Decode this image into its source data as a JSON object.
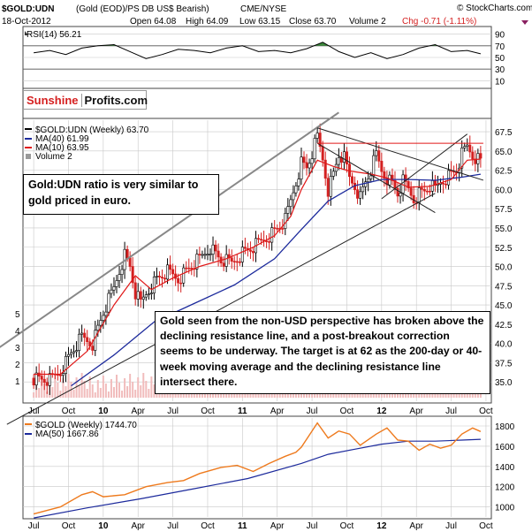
{
  "header": {
    "symbol": "$GOLD:UDN",
    "description": "(Gold (EOD)/PS DB US$ Bearish)",
    "exchange": "CME/NYSE",
    "source": "© StockCharts.com",
    "date": "18-Oct-2012",
    "open": "Open 64.08",
    "high": "High 64.09",
    "low": "Low 63.15",
    "close": "Close 63.70",
    "volume": "Volume 2",
    "chg": "Chg -0.71 (-1.11%)"
  },
  "logo": {
    "part1": "Sunshine",
    "part2": "Profits.com"
  },
  "annotations": {
    "top_note": "Gold:UDN ratio is very similar to gold priced in euro.",
    "main_note": "Gold seen from the non-USD perspective has broken above the declining resistance line, and a post-breakout correction seems to be underway. The target is at 62 as the 200-day or 40-week moving average and the declining resistance line intersect there."
  },
  "colors": {
    "price_up": "#000000",
    "price_down": "#d42020",
    "ma40": "#1c2a9c",
    "ma10": "#e01818",
    "volume": "#9a9a9a",
    "gold_line": "#ee7a1d",
    "gold_ma50": "#1c2a9c",
    "rsi_fill": "#3c8a3c",
    "grid": "#c8c8c8"
  },
  "chart_data": [
    {
      "type": "line",
      "panel": "rsi",
      "legend": "RSI(14) 56.21",
      "current": 56.21,
      "y_ticks": [
        10,
        30,
        50,
        70,
        90
      ],
      "ylim": [
        0,
        100
      ],
      "levels": [
        30,
        70
      ],
      "x": [
        0,
        6,
        12,
        18,
        24,
        30,
        36,
        42,
        48,
        54,
        60,
        66,
        72,
        78,
        84,
        90,
        96,
        102,
        108,
        114,
        120,
        126,
        132,
        138,
        144,
        150,
        156,
        162,
        167
      ],
      "values": [
        58,
        62,
        55,
        66,
        70,
        72,
        60,
        48,
        55,
        64,
        62,
        58,
        66,
        70,
        60,
        62,
        58,
        65,
        76,
        60,
        50,
        58,
        48,
        55,
        66,
        72,
        60,
        62,
        56.21
      ]
    },
    {
      "type": "candlestick",
      "panel": "price",
      "title": "$GOLD:UDN (Weekly) 63.70",
      "legend": [
        "MA(40) 61.99",
        "MA(10) 63.95",
        "Volume 2"
      ],
      "y_ticks": [
        35.0,
        37.5,
        40.0,
        42.5,
        45.0,
        47.5,
        50.0,
        52.5,
        55.0,
        57.5,
        60.0,
        62.5,
        65.0,
        67.5
      ],
      "ylim": [
        32.5,
        69.0
      ],
      "volume_ticks": [
        1,
        2,
        3,
        4,
        5
      ],
      "x_ticks": [
        "Jul",
        "Oct",
        "10",
        "Apr",
        "Jul",
        "Oct",
        "11",
        "Apr",
        "Jul",
        "Oct",
        "12",
        "Apr",
        "Jul",
        "Oct"
      ],
      "x_tick_weeks": [
        0,
        13,
        26,
        39,
        52,
        65,
        78,
        91,
        104,
        117,
        130,
        143,
        156,
        169
      ],
      "close_points": [
        [
          0,
          35.5
        ],
        [
          6,
          35.2
        ],
        [
          10,
          36.4
        ],
        [
          14,
          38.8
        ],
        [
          18,
          40.8
        ],
        [
          22,
          40.0
        ],
        [
          26,
          44.0
        ],
        [
          30,
          47.2
        ],
        [
          32,
          49.5
        ],
        [
          34,
          51.5
        ],
        [
          36,
          50.0
        ],
        [
          38,
          46.5
        ],
        [
          40,
          45.2
        ],
        [
          42,
          46.5
        ],
        [
          46,
          48.4
        ],
        [
          50,
          49.3
        ],
        [
          54,
          48.4
        ],
        [
          58,
          49.8
        ],
        [
          62,
          51.0
        ],
        [
          66,
          52.5
        ],
        [
          70,
          50.8
        ],
        [
          74,
          50.5
        ],
        [
          78,
          51.8
        ],
        [
          82,
          52.5
        ],
        [
          86,
          53.5
        ],
        [
          90,
          54.6
        ],
        [
          94,
          56.0
        ],
        [
          96,
          58.5
        ],
        [
          98,
          61.0
        ],
        [
          100,
          63.5
        ],
        [
          102,
          62.8
        ],
        [
          104,
          64.7
        ],
        [
          106,
          66.8
        ],
        [
          108,
          64.0
        ],
        [
          110,
          60.0
        ],
        [
          112,
          62.0
        ],
        [
          114,
          64.5
        ],
        [
          116,
          64.0
        ],
        [
          118,
          61.5
        ],
        [
          120,
          60.5
        ],
        [
          122,
          59.0
        ],
        [
          124,
          61.0
        ],
        [
          126,
          62.5
        ],
        [
          128,
          64.5
        ],
        [
          130,
          62.5
        ],
        [
          132,
          61.5
        ],
        [
          134,
          60.8
        ],
        [
          136,
          59.5
        ],
        [
          138,
          61.0
        ],
        [
          140,
          60.0
        ],
        [
          142,
          58.8
        ],
        [
          144,
          59.5
        ],
        [
          146,
          59.8
        ],
        [
          148,
          60.5
        ],
        [
          150,
          60.0
        ],
        [
          152,
          61.0
        ],
        [
          154,
          61.5
        ],
        [
          156,
          62.0
        ],
        [
          158,
          62.5
        ],
        [
          160,
          64.5
        ],
        [
          162,
          65.6
        ],
        [
          164,
          64.5
        ],
        [
          167,
          63.7
        ]
      ],
      "ma10_points": [
        [
          0,
          36.0
        ],
        [
          10,
          36.0
        ],
        [
          20,
          39.0
        ],
        [
          30,
          45.0
        ],
        [
          38,
          48.8
        ],
        [
          44,
          47.0
        ],
        [
          52,
          48.5
        ],
        [
          62,
          50.0
        ],
        [
          72,
          51.0
        ],
        [
          82,
          52.5
        ],
        [
          90,
          54.0
        ],
        [
          96,
          56.5
        ],
        [
          100,
          60.0
        ],
        [
          106,
          63.8
        ],
        [
          112,
          63.0
        ],
        [
          118,
          62.4
        ],
        [
          126,
          62.0
        ],
        [
          132,
          61.5
        ],
        [
          140,
          60.3
        ],
        [
          148,
          60.4
        ],
        [
          156,
          61.3
        ],
        [
          162,
          63.8
        ],
        [
          167,
          63.95
        ]
      ],
      "ma40_points": [
        [
          14,
          34.5
        ],
        [
          30,
          38.5
        ],
        [
          45,
          42.8
        ],
        [
          60,
          45.2
        ],
        [
          75,
          47.6
        ],
        [
          90,
          51.0
        ],
        [
          100,
          54.8
        ],
        [
          110,
          58.5
        ],
        [
          120,
          60.5
        ],
        [
          130,
          61.3
        ],
        [
          140,
          61.3
        ],
        [
          150,
          61.2
        ],
        [
          160,
          61.6
        ],
        [
          167,
          61.99
        ]
      ],
      "trendlines": [
        {
          "name": "long-term support",
          "points": [
            [
              -10,
              29.5
            ],
            [
              150,
              59.5
            ]
          ]
        },
        {
          "name": "long-term resistance channel",
          "points": [
            [
              -14,
              39.2
            ],
            [
              114,
              70.0
            ]
          ]
        },
        {
          "name": "declining resistance",
          "points": [
            [
              106,
              68.0
            ],
            [
              168,
              61.2
            ]
          ]
        },
        {
          "name": "support channel lower",
          "points": [
            [
              106,
              66.0
            ],
            [
              150,
              57.0
            ]
          ]
        },
        {
          "name": "upper channel",
          "points": [
            [
              130,
              58.8
            ],
            [
              162,
              67.2
            ]
          ]
        },
        {
          "name": "horizontal resistance",
          "points": [
            [
              106,
              66.0
            ],
            [
              168,
              66.0
            ]
          ]
        }
      ]
    },
    {
      "type": "line",
      "panel": "gold",
      "title": "$GOLD (Weekly) 1744.70",
      "legend": [
        "MA(50) 1667.86"
      ],
      "y_ticks": [
        1000,
        1200,
        1400,
        1600,
        1800
      ],
      "ylim": [
        900,
        1870
      ],
      "x_ticks": [
        "Jul",
        "Oct",
        "10",
        "Apr",
        "Jul",
        "Oct",
        "11",
        "Apr",
        "Jul",
        "Oct",
        "12",
        "Apr",
        "Jul",
        "Oct"
      ],
      "price_points": [
        [
          0,
          930
        ],
        [
          10,
          1000
        ],
        [
          18,
          1120
        ],
        [
          22,
          1150
        ],
        [
          26,
          1100
        ],
        [
          34,
          1120
        ],
        [
          42,
          1200
        ],
        [
          50,
          1240
        ],
        [
          56,
          1260
        ],
        [
          62,
          1330
        ],
        [
          70,
          1390
        ],
        [
          76,
          1410
        ],
        [
          82,
          1350
        ],
        [
          88,
          1430
        ],
        [
          94,
          1500
        ],
        [
          98,
          1540
        ],
        [
          100,
          1590
        ],
        [
          104,
          1750
        ],
        [
          106,
          1830
        ],
        [
          110,
          1680
        ],
        [
          114,
          1750
        ],
        [
          118,
          1720
        ],
        [
          122,
          1610
        ],
        [
          128,
          1720
        ],
        [
          132,
          1780
        ],
        [
          136,
          1660
        ],
        [
          140,
          1650
        ],
        [
          144,
          1560
        ],
        [
          148,
          1620
        ],
        [
          152,
          1580
        ],
        [
          156,
          1610
        ],
        [
          160,
          1720
        ],
        [
          164,
          1780
        ],
        [
          167,
          1744.7
        ]
      ],
      "ma50_points": [
        [
          0,
          890
        ],
        [
          20,
          990
        ],
        [
          40,
          1080
        ],
        [
          60,
          1180
        ],
        [
          80,
          1280
        ],
        [
          100,
          1430
        ],
        [
          110,
          1520
        ],
        [
          120,
          1570
        ],
        [
          130,
          1620
        ],
        [
          140,
          1650
        ],
        [
          150,
          1650
        ],
        [
          160,
          1660
        ],
        [
          167,
          1667.86
        ]
      ]
    }
  ]
}
